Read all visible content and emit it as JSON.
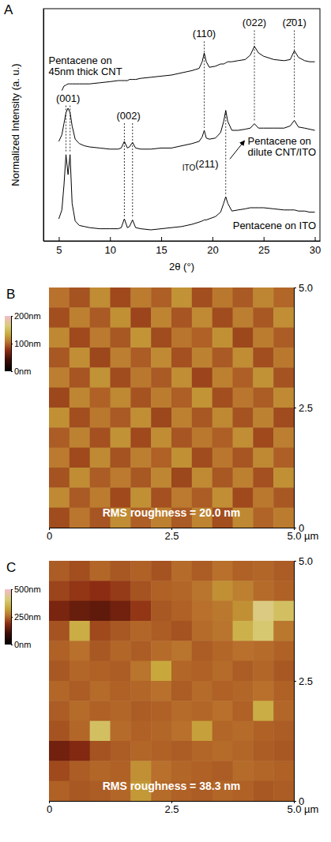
{
  "chart_data": [
    {
      "panel_label": "A",
      "type": "line",
      "xlabel": "2θ (°)",
      "ylabel": "Normalized Intensity (a. u.)",
      "xlim": [
        3.5,
        30.5
      ],
      "ylim": [
        0,
        1.05
      ],
      "xticks": [
        5,
        10,
        15,
        20,
        25,
        30
      ],
      "tick_labels": "x",
      "x": [
        5.0,
        5.3,
        5.5,
        5.7,
        5.9,
        6.1,
        6.3,
        6.6,
        7.0,
        7.5,
        8,
        9,
        10,
        10.8,
        11.1,
        11.4,
        11.7,
        11.9,
        12.2,
        12.5,
        13,
        14,
        15,
        16,
        17,
        18,
        18.7,
        19.0,
        19.2,
        19.4,
        19.7,
        20.3,
        20.8,
        21.1,
        21.3,
        21.5,
        21.9,
        22.5,
        23.2,
        23.7,
        24.1,
        24.5,
        25,
        26,
        27,
        27.6,
        28.0,
        28.4,
        29,
        29.5,
        30
      ],
      "series": [
        {
          "name": "Pentacene on 45nm thick CNT",
          "color": "#000000",
          "values": [
            null,
            0.68,
            0.7,
            0.705,
            0.71,
            0.71,
            0.71,
            0.71,
            0.71,
            0.71,
            0.71,
            0.715,
            0.72,
            0.725,
            0.725,
            0.725,
            0.725,
            0.73,
            0.73,
            0.73,
            0.735,
            0.74,
            0.745,
            0.75,
            0.76,
            0.77,
            0.78,
            0.81,
            0.85,
            0.81,
            0.785,
            0.79,
            0.8,
            0.8,
            0.805,
            0.81,
            0.81,
            0.815,
            0.82,
            0.84,
            0.88,
            0.85,
            0.835,
            0.82,
            0.815,
            0.82,
            0.86,
            0.83,
            0.815,
            0.81,
            0.81
          ]
        },
        {
          "name": "Pentacene on dilute CNT/ITO",
          "color": "#000000",
          "values": [
            0.45,
            0.48,
            0.53,
            0.58,
            0.6,
            0.58,
            0.52,
            0.46,
            0.44,
            0.43,
            0.425,
            0.42,
            0.415,
            0.415,
            0.42,
            0.45,
            0.42,
            0.425,
            0.445,
            0.42,
            0.415,
            0.415,
            0.42,
            0.42,
            0.43,
            0.44,
            0.45,
            0.47,
            0.5,
            0.465,
            0.46,
            0.465,
            0.49,
            0.54,
            0.59,
            0.54,
            0.5,
            0.5,
            0.505,
            0.51,
            0.53,
            0.51,
            0.51,
            0.51,
            0.51,
            0.52,
            0.545,
            0.515,
            0.51,
            0.505,
            0.5
          ]
        },
        {
          "name": "Pentacene on ITO",
          "color": "#000000",
          "values": [
            0.1,
            0.14,
            0.25,
            0.39,
            0.3,
            0.39,
            0.17,
            0.09,
            0.07,
            0.065,
            0.06,
            0.055,
            0.055,
            0.055,
            0.06,
            0.1,
            0.06,
            0.065,
            0.095,
            0.06,
            0.055,
            0.05,
            0.055,
            0.06,
            0.065,
            0.075,
            0.085,
            0.09,
            0.095,
            0.095,
            0.1,
            0.11,
            0.13,
            0.17,
            0.2,
            0.17,
            0.135,
            0.14,
            0.145,
            0.15,
            0.15,
            0.15,
            0.15,
            0.145,
            0.14,
            0.14,
            0.14,
            0.135,
            0.135,
            0.13,
            0.13
          ]
        }
      ],
      "peaks": [
        {
          "label": "(001)",
          "x": [
            5.7,
            6.1
          ]
        },
        {
          "label": "(002)",
          "x": [
            11.4,
            12.2
          ]
        },
        {
          "label": "(110)",
          "x": [
            19.2
          ]
        },
        {
          "sub": "ITO",
          "label": "(211)",
          "x": [
            21.3
          ]
        },
        {
          "label": "(022)",
          "x": [
            24.1
          ]
        },
        {
          "label": "(2̄01)",
          "x": [
            28.0
          ]
        }
      ]
    },
    {
      "panel_label": "B",
      "type": "heatmap",
      "xlabel": "µm",
      "xlim": [
        0,
        5
      ],
      "ylim": [
        0,
        5
      ],
      "xticks": [
        0,
        2.5,
        {
          "value": 5,
          "label": "5.0"
        }
      ],
      "yticks": [
        0,
        2.5,
        {
          "value": 5,
          "label": "5.0"
        }
      ],
      "annotation": "RMS roughness = 20.0 nm",
      "colorbar": {
        "range": [
          0,
          200
        ],
        "ticks": [
          {
            "value": 0,
            "label": "0nm"
          },
          {
            "value": 100,
            "label": "100nm"
          },
          {
            "value": 200,
            "label": "200nm"
          }
        ]
      },
      "z": [
        [
          105,
          92,
          118,
          88,
          110,
          97,
          121,
          90,
          108,
          95,
          115,
          100
        ],
        [
          90,
          112,
          95,
          120,
          86,
          114,
          93,
          117,
          89,
          111,
          94,
          119
        ],
        [
          116,
          88,
          109,
          94,
          122,
          89,
          106,
          98,
          120,
          87,
          110,
          96
        ],
        [
          94,
          119,
          87,
          111,
          96,
          117,
          91,
          113,
          95,
          118,
          90,
          108
        ],
        [
          111,
          93,
          121,
          89,
          108,
          95,
          119,
          86,
          112,
          97,
          121,
          92
        ],
        [
          87,
          115,
          98,
          116,
          92,
          110,
          97,
          122,
          90,
          107,
          96,
          117
        ],
        [
          120,
          90,
          108,
          95,
          119,
          87,
          112,
          94,
          116,
          92,
          113,
          89
        ],
        [
          96,
          113,
          91,
          121,
          88,
          118,
          93,
          108,
          97,
          119,
          88,
          111
        ],
        [
          109,
          88,
          117,
          92,
          111,
          98,
          120,
          89,
          107,
          93,
          116,
          97
        ],
        [
          92,
          118,
          96,
          109,
          94,
          115,
          87,
          117,
          94,
          112,
          91,
          120
        ],
        [
          117,
          95,
          110,
          88,
          120,
          91,
          109,
          96,
          119,
          88,
          108,
          94
        ],
        [
          89,
          107,
          93,
          118,
          97,
          112,
          95,
          114,
          90,
          116,
          99,
          110
        ]
      ]
    },
    {
      "panel_label": "C",
      "type": "heatmap",
      "xlabel": "µm",
      "xlim": [
        0,
        5
      ],
      "ylim": [
        0,
        5
      ],
      "xticks": [
        0,
        2.5,
        {
          "value": 5,
          "label": "5.0"
        }
      ],
      "yticks": [
        0,
        2.5,
        {
          "value": 5,
          "label": "5.0"
        }
      ],
      "annotation": "RMS roughness = 38.3 nm",
      "colorbar": {
        "range": [
          0,
          500
        ],
        "ticks": [
          {
            "value": 0,
            "label": "0nm"
          },
          {
            "value": 250,
            "label": "250nm"
          },
          {
            "value": 500,
            "label": "500nm"
          }
        ]
      },
      "z": [
        [
          240,
          225,
          250,
          235,
          245,
          230,
          255,
          240,
          260,
          245,
          250,
          240
        ],
        [
          215,
          200,
          190,
          205,
          230,
          245,
          250,
          265,
          300,
          280,
          255,
          245
        ],
        [
          170,
          150,
          140,
          160,
          200,
          235,
          245,
          260,
          270,
          300,
          420,
          380
        ],
        [
          230,
          340,
          220,
          235,
          250,
          240,
          230,
          255,
          265,
          350,
          400,
          270
        ],
        [
          245,
          260,
          235,
          250,
          240,
          255,
          265,
          240,
          250,
          260,
          255,
          245
        ],
        [
          235,
          250,
          245,
          240,
          265,
          330,
          250,
          245,
          255,
          240,
          250,
          235
        ],
        [
          250,
          240,
          255,
          245,
          250,
          260,
          240,
          255,
          245,
          250,
          260,
          245
        ],
        [
          240,
          255,
          245,
          250,
          240,
          245,
          255,
          250,
          260,
          245,
          340,
          250
        ],
        [
          230,
          250,
          380,
          255,
          245,
          250,
          260,
          320,
          250,
          255,
          245,
          240
        ],
        [
          160,
          180,
          230,
          240,
          250,
          245,
          240,
          250,
          255,
          250,
          240,
          235
        ],
        [
          220,
          240,
          250,
          245,
          300,
          260,
          250,
          245,
          240,
          255,
          250,
          245
        ],
        [
          245,
          235,
          240,
          250,
          310,
          255,
          245,
          240,
          250,
          245,
          235,
          240
        ]
      ]
    }
  ]
}
